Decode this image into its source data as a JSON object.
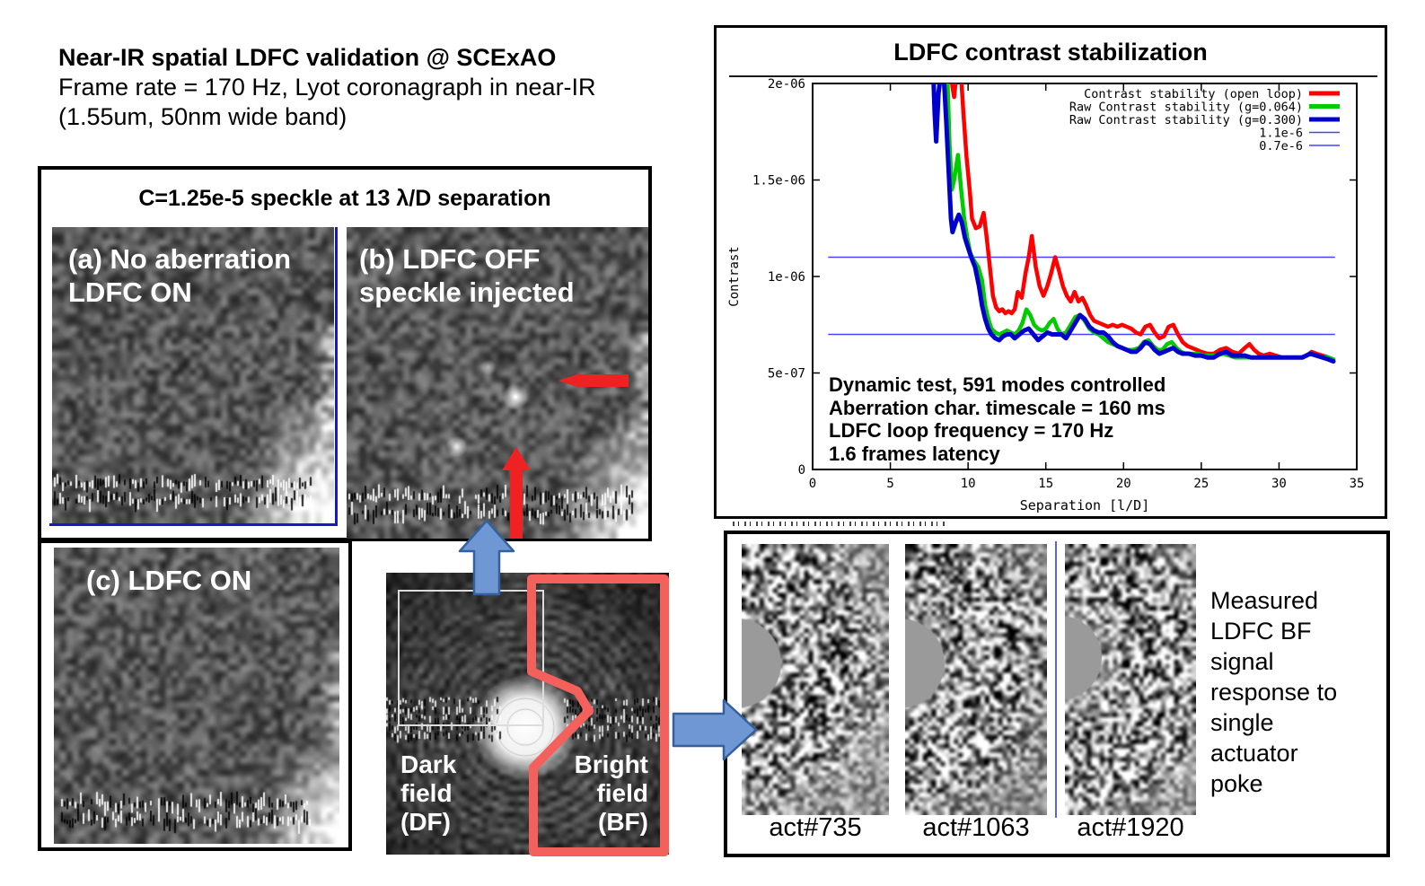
{
  "slide": {
    "title": "Near-IR spatial LDFC validation @ SCExAO",
    "subtitle1": "Frame rate = 170 Hz, Lyot coronagraph in near-IR",
    "subtitle2": "(1.55um, 50nm wide band)"
  },
  "speckle_panel": {
    "header": "C=1.25e-5 speckle at 13 λ/D separation",
    "image_a": {
      "label1": "(a) No aberration",
      "label2": "LDFC ON"
    },
    "image_b": {
      "label1": "(b) LDFC OFF",
      "label2": "speckle injected"
    },
    "image_c": {
      "label": "(c) LDFC ON"
    }
  },
  "psf_image": {
    "dark_field": [
      "Dark",
      "field",
      "(DF)"
    ],
    "bright_field": [
      "Bright",
      "field",
      "(BF)"
    ]
  },
  "chart": {
    "title": "LDFC contrast stabilization",
    "annotation": [
      "Dynamic test, 591 modes controlled",
      "Aberration char. timescale = 160 ms",
      "LDFC loop frequency = 170 Hz",
      "1.6 frames latency"
    ]
  },
  "chart_data": {
    "type": "line",
    "title": "LDFC contrast stabilization",
    "xlabel": "Separation [l/D]",
    "ylabel": "Contrast",
    "xlim": [
      0,
      35
    ],
    "ylim_label": "0 to 2e-06",
    "y_unit": "1e-6",
    "ylim": [
      0,
      2
    ],
    "grid": false,
    "legend_position": "top-right",
    "xticks": [
      0,
      5,
      10,
      15,
      20,
      25,
      30,
      35
    ],
    "yticks": [
      {
        "v": 0,
        "label": "0"
      },
      {
        "v": 0.5,
        "label": "5e-07"
      },
      {
        "v": 1.0,
        "label": "1e-06"
      },
      {
        "v": 1.5,
        "label": "1.5e-06"
      },
      {
        "v": 2.0,
        "label": "2e-06"
      }
    ],
    "hlines": [
      {
        "label": "1.1e-6",
        "y": 1.1,
        "x1": 1.0,
        "x2": 33.6,
        "color": "#4444ff"
      },
      {
        "label": "0.7e-6",
        "y": 0.7,
        "x1": 1.0,
        "x2": 33.6,
        "color": "#4444ff"
      }
    ],
    "legend": [
      {
        "label": "Contrast stability (open loop)",
        "color": "#ff0000",
        "lw": 5
      },
      {
        "label": "Raw Contrast stability (g=0.064)",
        "color": "#00cc00",
        "lw": 5
      },
      {
        "label": "Raw Contrast stability (g=0.300)",
        "color": "#0000cc",
        "lw": 5
      },
      {
        "label": "1.1e-6",
        "color": "#4444ff",
        "lw": 1.5
      },
      {
        "label": "0.7e-6",
        "color": "#4444ff",
        "lw": 1.5
      }
    ],
    "series": [
      {
        "name": "Contrast stability (open loop)",
        "color": "#ff0000",
        "lw": 4.5,
        "points": [
          [
            8.85,
            2.08
          ],
          [
            9.0,
            1.98
          ],
          [
            9.1,
            1.93
          ],
          [
            9.25,
            2.05
          ],
          [
            9.5,
            2.1
          ],
          [
            9.7,
            1.85
          ],
          [
            9.9,
            1.62
          ],
          [
            10.1,
            1.45
          ],
          [
            10.25,
            1.3
          ],
          [
            10.5,
            1.25
          ],
          [
            10.75,
            1.26
          ],
          [
            11.0,
            1.33
          ],
          [
            11.2,
            1.2
          ],
          [
            11.4,
            1.05
          ],
          [
            11.6,
            0.9
          ],
          [
            11.8,
            0.84
          ],
          [
            12.0,
            0.82
          ],
          [
            12.2,
            0.83
          ],
          [
            12.4,
            0.81
          ],
          [
            12.6,
            0.82
          ],
          [
            12.8,
            0.81
          ],
          [
            13.0,
            0.83
          ],
          [
            13.2,
            0.92
          ],
          [
            13.45,
            0.89
          ],
          [
            13.7,
            1.02
          ],
          [
            13.9,
            1.1
          ],
          [
            14.1,
            1.21
          ],
          [
            14.35,
            1.05
          ],
          [
            14.6,
            0.95
          ],
          [
            14.85,
            0.9
          ],
          [
            15.1,
            0.95
          ],
          [
            15.35,
            1.02
          ],
          [
            15.6,
            1.1
          ],
          [
            15.85,
            1.03
          ],
          [
            16.1,
            0.95
          ],
          [
            16.35,
            0.9
          ],
          [
            16.6,
            0.87
          ],
          [
            16.85,
            0.92
          ],
          [
            17.1,
            0.87
          ],
          [
            17.35,
            0.89
          ],
          [
            17.6,
            0.85
          ],
          [
            17.85,
            0.8
          ],
          [
            18.1,
            0.77
          ],
          [
            18.4,
            0.76
          ],
          [
            18.7,
            0.75
          ],
          [
            19.0,
            0.74
          ],
          [
            19.3,
            0.75
          ],
          [
            19.6,
            0.74
          ],
          [
            19.9,
            0.75
          ],
          [
            20.2,
            0.74
          ],
          [
            20.5,
            0.73
          ],
          [
            20.8,
            0.71
          ],
          [
            21.1,
            0.7
          ],
          [
            21.4,
            0.74
          ],
          [
            21.7,
            0.75
          ],
          [
            22.0,
            0.71
          ],
          [
            22.3,
            0.68
          ],
          [
            22.6,
            0.69
          ],
          [
            22.9,
            0.74
          ],
          [
            23.2,
            0.75
          ],
          [
            23.5,
            0.7
          ],
          [
            23.8,
            0.66
          ],
          [
            24.1,
            0.64
          ],
          [
            24.4,
            0.63
          ],
          [
            24.7,
            0.62
          ],
          [
            25.0,
            0.61
          ],
          [
            25.4,
            0.6
          ],
          [
            25.8,
            0.6
          ],
          [
            26.2,
            0.62
          ],
          [
            26.6,
            0.63
          ],
          [
            27.0,
            0.61
          ],
          [
            27.4,
            0.6
          ],
          [
            27.8,
            0.63
          ],
          [
            28.1,
            0.65
          ],
          [
            28.4,
            0.62
          ],
          [
            28.7,
            0.6
          ],
          [
            29.0,
            0.59
          ],
          [
            29.4,
            0.6
          ],
          [
            29.8,
            0.59
          ],
          [
            30.2,
            0.58
          ],
          [
            30.6,
            0.58
          ],
          [
            31.0,
            0.58
          ],
          [
            31.4,
            0.58
          ],
          [
            31.8,
            0.59
          ],
          [
            32.1,
            0.61
          ],
          [
            32.4,
            0.6
          ],
          [
            32.8,
            0.59
          ],
          [
            33.2,
            0.58
          ],
          [
            33.5,
            0.57
          ]
        ]
      },
      {
        "name": "Raw Contrast stability (g=0.064)",
        "color": "#00cc00",
        "lw": 4.5,
        "points": [
          [
            8.65,
            2.08
          ],
          [
            8.8,
            1.7
          ],
          [
            8.95,
            1.45
          ],
          [
            9.1,
            1.5
          ],
          [
            9.35,
            1.63
          ],
          [
            9.55,
            1.45
          ],
          [
            9.75,
            1.3
          ],
          [
            9.95,
            1.2
          ],
          [
            10.15,
            1.12
          ],
          [
            10.4,
            1.08
          ],
          [
            10.65,
            1.05
          ],
          [
            10.9,
            0.98
          ],
          [
            11.1,
            0.85
          ],
          [
            11.3,
            0.78
          ],
          [
            11.5,
            0.73
          ],
          [
            11.75,
            0.71
          ],
          [
            12.0,
            0.7
          ],
          [
            12.25,
            0.71
          ],
          [
            12.5,
            0.72
          ],
          [
            12.75,
            0.71
          ],
          [
            13.0,
            0.7
          ],
          [
            13.25,
            0.72
          ],
          [
            13.5,
            0.76
          ],
          [
            13.75,
            0.83
          ],
          [
            14.0,
            0.8
          ],
          [
            14.25,
            0.75
          ],
          [
            14.5,
            0.73
          ],
          [
            14.75,
            0.72
          ],
          [
            15.0,
            0.73
          ],
          [
            15.25,
            0.76
          ],
          [
            15.5,
            0.78
          ],
          [
            15.75,
            0.73
          ],
          [
            16.0,
            0.7
          ],
          [
            16.3,
            0.71
          ],
          [
            16.6,
            0.75
          ],
          [
            16.9,
            0.79
          ],
          [
            17.2,
            0.8
          ],
          [
            17.5,
            0.77
          ],
          [
            17.8,
            0.73
          ],
          [
            18.1,
            0.71
          ],
          [
            18.4,
            0.7
          ],
          [
            18.7,
            0.68
          ],
          [
            19.0,
            0.66
          ],
          [
            19.3,
            0.65
          ],
          [
            19.6,
            0.64
          ],
          [
            19.9,
            0.63
          ],
          [
            20.2,
            0.62
          ],
          [
            20.6,
            0.62
          ],
          [
            21.0,
            0.63
          ],
          [
            21.3,
            0.66
          ],
          [
            21.6,
            0.67
          ],
          [
            21.9,
            0.64
          ],
          [
            22.2,
            0.62
          ],
          [
            22.5,
            0.62
          ],
          [
            22.8,
            0.65
          ],
          [
            23.1,
            0.66
          ],
          [
            23.4,
            0.63
          ],
          [
            23.7,
            0.61
          ],
          [
            24.0,
            0.6
          ],
          [
            24.4,
            0.6
          ],
          [
            24.8,
            0.6
          ],
          [
            25.2,
            0.59
          ],
          [
            25.6,
            0.59
          ],
          [
            26.0,
            0.59
          ],
          [
            26.4,
            0.6
          ],
          [
            26.8,
            0.59
          ],
          [
            27.2,
            0.58
          ],
          [
            27.6,
            0.58
          ],
          [
            28.0,
            0.58
          ],
          [
            28.5,
            0.58
          ],
          [
            29.0,
            0.58
          ],
          [
            29.5,
            0.58
          ],
          [
            30.0,
            0.58
          ],
          [
            30.5,
            0.58
          ],
          [
            31.0,
            0.58
          ],
          [
            31.5,
            0.58
          ],
          [
            32.0,
            0.6
          ],
          [
            32.4,
            0.59
          ],
          [
            32.8,
            0.58
          ],
          [
            33.2,
            0.58
          ],
          [
            33.5,
            0.57
          ]
        ]
      },
      {
        "name": "Raw Contrast stability (g=0.300)",
        "color": "#0000cc",
        "lw": 5,
        "points": [
          [
            7.75,
            2.08
          ],
          [
            7.85,
            1.85
          ],
          [
            7.95,
            1.7
          ],
          [
            8.1,
            1.95
          ],
          [
            8.25,
            2.05
          ],
          [
            8.45,
            2.02
          ],
          [
            8.6,
            1.8
          ],
          [
            8.75,
            1.55
          ],
          [
            8.9,
            1.3
          ],
          [
            9.0,
            1.23
          ],
          [
            9.2,
            1.28
          ],
          [
            9.4,
            1.32
          ],
          [
            9.6,
            1.28
          ],
          [
            9.8,
            1.2
          ],
          [
            10.0,
            1.15
          ],
          [
            10.2,
            1.1
          ],
          [
            10.45,
            1.05
          ],
          [
            10.7,
            0.95
          ],
          [
            10.9,
            0.85
          ],
          [
            11.1,
            0.78
          ],
          [
            11.3,
            0.73
          ],
          [
            11.5,
            0.7
          ],
          [
            11.75,
            0.68
          ],
          [
            12.0,
            0.67
          ],
          [
            12.25,
            0.69
          ],
          [
            12.5,
            0.7
          ],
          [
            12.75,
            0.7
          ],
          [
            13.0,
            0.68
          ],
          [
            13.3,
            0.7
          ],
          [
            13.6,
            0.72
          ],
          [
            13.9,
            0.73
          ],
          [
            14.2,
            0.7
          ],
          [
            14.5,
            0.67
          ],
          [
            14.8,
            0.69
          ],
          [
            15.1,
            0.71
          ],
          [
            15.4,
            0.7
          ],
          [
            15.7,
            0.7
          ],
          [
            16.0,
            0.7
          ],
          [
            16.3,
            0.68
          ],
          [
            16.6,
            0.72
          ],
          [
            16.9,
            0.76
          ],
          [
            17.2,
            0.8
          ],
          [
            17.5,
            0.78
          ],
          [
            17.8,
            0.74
          ],
          [
            18.1,
            0.72
          ],
          [
            18.4,
            0.71
          ],
          [
            18.7,
            0.71
          ],
          [
            19.0,
            0.69
          ],
          [
            19.3,
            0.66
          ],
          [
            19.6,
            0.64
          ],
          [
            19.9,
            0.63
          ],
          [
            20.2,
            0.62
          ],
          [
            20.5,
            0.61
          ],
          [
            20.8,
            0.61
          ],
          [
            21.1,
            0.63
          ],
          [
            21.4,
            0.66
          ],
          [
            21.7,
            0.65
          ],
          [
            22.0,
            0.62
          ],
          [
            22.3,
            0.6
          ],
          [
            22.6,
            0.61
          ],
          [
            22.9,
            0.62
          ],
          [
            23.2,
            0.63
          ],
          [
            23.5,
            0.61
          ],
          [
            23.8,
            0.6
          ],
          [
            24.2,
            0.6
          ],
          [
            24.6,
            0.59
          ],
          [
            25.0,
            0.59
          ],
          [
            25.4,
            0.58
          ],
          [
            25.8,
            0.58
          ],
          [
            26.2,
            0.6
          ],
          [
            26.6,
            0.61
          ],
          [
            27.0,
            0.59
          ],
          [
            27.4,
            0.59
          ],
          [
            27.8,
            0.59
          ],
          [
            28.2,
            0.58
          ],
          [
            28.6,
            0.58
          ],
          [
            29.0,
            0.58
          ],
          [
            29.5,
            0.58
          ],
          [
            30.0,
            0.58
          ],
          [
            30.5,
            0.58
          ],
          [
            31.0,
            0.58
          ],
          [
            31.5,
            0.58
          ],
          [
            32.0,
            0.6
          ],
          [
            32.4,
            0.59
          ],
          [
            32.8,
            0.58
          ],
          [
            33.2,
            0.57
          ],
          [
            33.5,
            0.56
          ]
        ]
      }
    ]
  },
  "response_panel": {
    "caption": [
      "Measured",
      "LDFC BF",
      "signal",
      "response to",
      "single",
      "actuator",
      "poke"
    ],
    "act_labels": [
      "act#735",
      "act#1063",
      "act#1920"
    ]
  },
  "colors": {
    "arrow_fill": "#6f97d3",
    "arrow_stroke": "#33619f",
    "red_arrow": "#ee2222",
    "bf_outline": "#f4615c",
    "divider_blue": "#5566dd",
    "guide_blue": "#1717cc"
  }
}
